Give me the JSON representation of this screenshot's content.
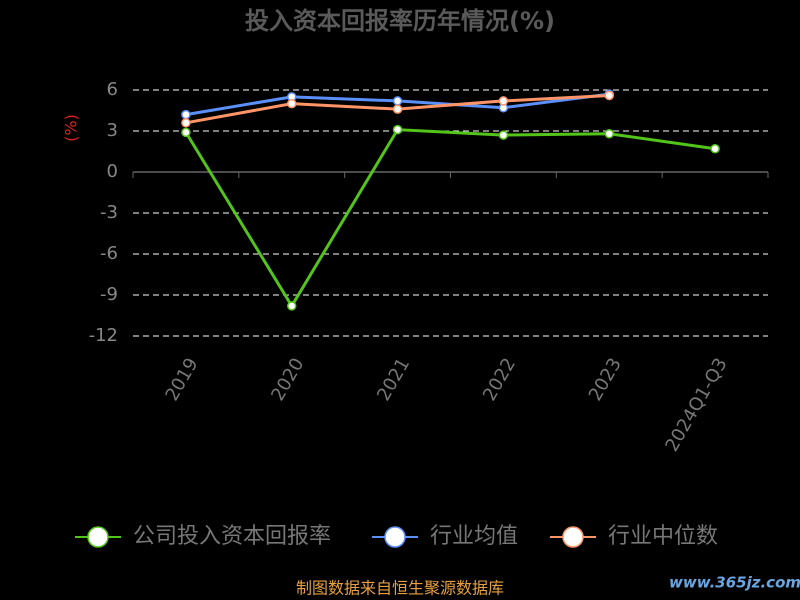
{
  "chart_data": {
    "type": "line",
    "title": "投入资本回报率历年情况(%)",
    "y_label": "(%)",
    "categories": [
      "2019",
      "2020",
      "2021",
      "2022",
      "2023",
      "2024Q1-Q3"
    ],
    "series": [
      {
        "name": "公司投入资本回报率",
        "color": "#52c41a",
        "values": [
          2.9,
          -9.8,
          3.1,
          2.7,
          2.8,
          1.7
        ]
      },
      {
        "name": "行业均值",
        "color": "#5b8ff9",
        "values": [
          4.2,
          5.5,
          5.2,
          4.7,
          5.7,
          null
        ]
      },
      {
        "name": "行业中位数",
        "color": "#ff9466",
        "values": [
          3.6,
          5.0,
          4.6,
          5.2,
          5.6,
          null
        ]
      }
    ],
    "ylim": [
      -12,
      6
    ],
    "yticks": [
      -12,
      -9,
      -6,
      -3,
      0,
      3,
      6
    ],
    "grid": true,
    "source": "制图数据来自恒生聚源数据库",
    "watermark": "www.365jz.com"
  }
}
